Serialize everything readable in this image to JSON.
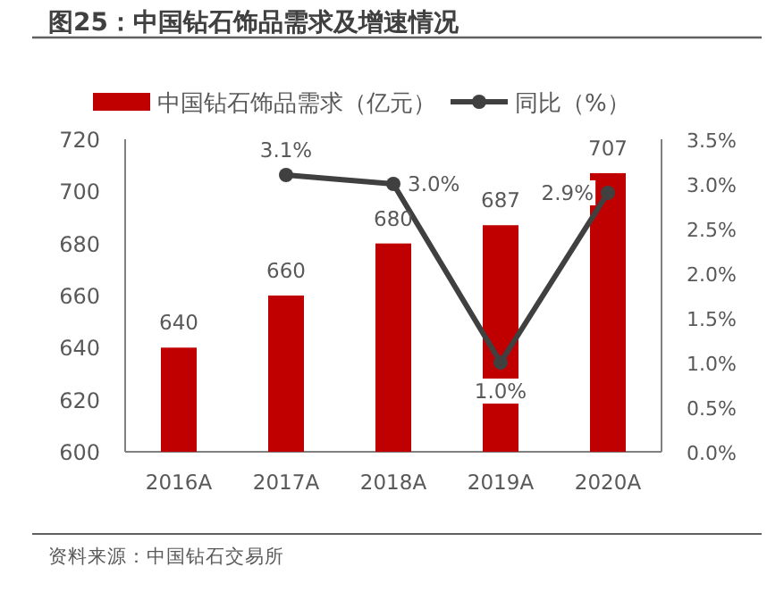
{
  "chart_data": {
    "type": "bar",
    "title": "图25：中国钻石饰品需求及增速情况",
    "categories": [
      "2016A",
      "2017A",
      "2018A",
      "2019A",
      "2020A"
    ],
    "series": [
      {
        "name": "中国钻石饰品需求（亿元）",
        "color": "#c00000",
        "values": [
          640,
          660,
          680,
          687,
          707
        ],
        "value_labels": [
          "640",
          "660",
          "680",
          "687",
          "707"
        ]
      },
      {
        "name": "同比（%）",
        "type": "line",
        "axis": "y2",
        "color": "#404040",
        "marker": "circle",
        "values": [
          null,
          3.1,
          3.0,
          1.0,
          2.9
        ],
        "value_labels": [
          null,
          "3.1%",
          "3.0%",
          "1.0%",
          "2.9%"
        ]
      }
    ],
    "ylim": [
      600,
      720
    ],
    "yticks": [
      600,
      620,
      640,
      660,
      680,
      700,
      720
    ],
    "y2lim": [
      0,
      3.5
    ],
    "y2ticks": [
      {
        "value": 0,
        "label": "0.0%"
      },
      {
        "value": 0.5,
        "label": "0.5%"
      },
      {
        "value": 1,
        "label": "1.0%"
      },
      {
        "value": 1.5,
        "label": "1.5%"
      },
      {
        "value": 2,
        "label": "2.0%"
      },
      {
        "value": 2.5,
        "label": "2.5%"
      },
      {
        "value": 3,
        "label": "3.0%"
      },
      {
        "value": 3.5,
        "label": "3.5%"
      }
    ],
    "legend": "top",
    "grid": false,
    "annotations": [
      "资料来源：中国钻石交易所"
    ]
  }
}
